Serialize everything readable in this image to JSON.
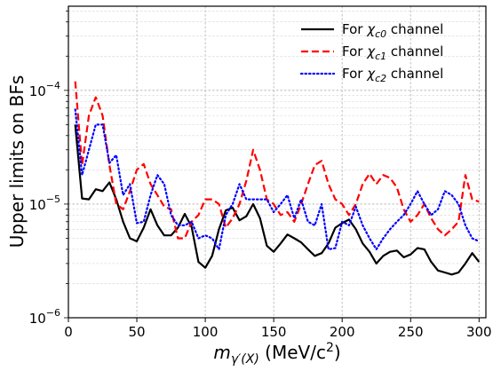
{
  "chart_data": {
    "type": "line",
    "title": "",
    "xlabel": "m_{γ'(X)} (MeV/c²)",
    "xlabel_parts": {
      "m": "m",
      "sub": "γ′(X)",
      "rest": " (MeV/c",
      "sup": "2",
      "close": ")"
    },
    "ylabel": "Upper limits on BFs",
    "xlim": [
      0,
      305
    ],
    "ylim": [
      1e-06,
      0.00055
    ],
    "yscale": "log",
    "xticks": [
      0,
      50,
      100,
      150,
      200,
      250,
      300
    ],
    "xtick_labels": [
      "0",
      "50",
      "100",
      "150",
      "200",
      "250",
      "300"
    ],
    "yticks": [
      1e-06,
      1e-05,
      0.0001
    ],
    "ytick_labels": [
      {
        "base": "10",
        "exp": "−6"
      },
      {
        "base": "10",
        "exp": "−5"
      },
      {
        "base": "10",
        "exp": "−4"
      }
    ],
    "grid": true,
    "legend_position": "top-right",
    "series": [
      {
        "name": "For χc0 channel",
        "legend": {
          "pre": "For ",
          "sym": "χ",
          "sub": "c0",
          "post": " channel"
        },
        "color": "#000000",
        "dash": "solid",
        "x": [
          5,
          10,
          15,
          20,
          25,
          30,
          35,
          40,
          45,
          50,
          55,
          60,
          65,
          70,
          75,
          80,
          85,
          90,
          95,
          100,
          105,
          110,
          115,
          120,
          125,
          130,
          135,
          140,
          145,
          150,
          155,
          160,
          165,
          170,
          175,
          180,
          185,
          190,
          195,
          200,
          205,
          210,
          215,
          220,
          225,
          230,
          235,
          240,
          245,
          250,
          255,
          260,
          265,
          270,
          275,
          280,
          285,
          290,
          295,
          300
        ],
        "y": [
          5e-05,
          1.12e-05,
          1.1e-05,
          1.35e-05,
          1.3e-05,
          1.55e-05,
          1.1e-05,
          7e-06,
          5e-06,
          4.7e-06,
          6.2e-06,
          9e-06,
          6.5e-06,
          5.3e-06,
          5.3e-06,
          6.2e-06,
          8.2e-06,
          6.3e-06,
          3.1e-06,
          2.75e-06,
          3.5e-06,
          6e-06,
          8.8e-06,
          9.3e-06,
          7.2e-06,
          7.8e-06,
          1e-05,
          7.5e-06,
          4.3e-06,
          3.8e-06,
          4.5e-06,
          5.4e-06,
          5e-06,
          4.6e-06,
          4e-06,
          3.5e-06,
          3.7e-06,
          4.5e-06,
          6.2e-06,
          6.8e-06,
          7.3e-06,
          6e-06,
          4.5e-06,
          3.8e-06,
          3e-06,
          3.5e-06,
          3.8e-06,
          3.9e-06,
          3.4e-06,
          3.6e-06,
          4.1e-06,
          4e-06,
          3.1e-06,
          2.6e-06,
          2.5e-06,
          2.4e-06,
          2.5e-06,
          3e-06,
          3.7e-06,
          3.1e-06
        ]
      },
      {
        "name": "For χc1 channel",
        "legend": {
          "pre": "For ",
          "sym": "χ",
          "sub": "c1",
          "post": " channel"
        },
        "color": "#ff0000",
        "dash": "dashed",
        "x": [
          5,
          10,
          15,
          20,
          25,
          30,
          35,
          40,
          45,
          50,
          55,
          60,
          65,
          70,
          75,
          80,
          85,
          90,
          95,
          100,
          105,
          110,
          115,
          120,
          125,
          130,
          135,
          140,
          145,
          150,
          155,
          160,
          165,
          170,
          175,
          180,
          185,
          190,
          195,
          200,
          205,
          210,
          215,
          220,
          225,
          230,
          235,
          240,
          245,
          250,
          255,
          260,
          265,
          270,
          275,
          280,
          285,
          290,
          295,
          300
        ],
        "y": [
          0.00012,
          2.2e-05,
          6e-05,
          8.7e-05,
          6e-05,
          2.2e-05,
          1e-05,
          9e-06,
          1.3e-05,
          2e-05,
          2.25e-05,
          1.5e-05,
          1.2e-05,
          9.5e-06,
          9e-06,
          5e-06,
          5e-06,
          7e-06,
          8e-06,
          1.1e-05,
          1.1e-05,
          1e-05,
          6.2e-06,
          7.5e-06,
          1e-05,
          1.6e-05,
          3e-05,
          2e-05,
          1.1e-05,
          1e-05,
          8e-06,
          8.5e-06,
          7e-06,
          1e-05,
          1.5e-05,
          2.2e-05,
          2.4e-05,
          1.5e-05,
          1.1e-05,
          1e-05,
          8e-06,
          1e-05,
          1.5e-05,
          1.85e-05,
          1.5e-05,
          1.8e-05,
          1.7e-05,
          1.4e-05,
          9e-06,
          7e-06,
          8e-06,
          1e-05,
          7.5e-06,
          6e-06,
          5.3e-06,
          6e-06,
          7e-06,
          1.8e-05,
          1.1e-05,
          1.05e-05
        ]
      },
      {
        "name": "For χc2 channel",
        "legend": {
          "pre": "For ",
          "sym": "χ",
          "sub": "c2",
          "post": " channel"
        },
        "color": "#0000ff",
        "dash": "dotted",
        "x": [
          5,
          10,
          15,
          20,
          25,
          30,
          35,
          40,
          45,
          50,
          55,
          60,
          65,
          70,
          75,
          80,
          85,
          90,
          95,
          100,
          105,
          110,
          115,
          120,
          125,
          130,
          135,
          140,
          145,
          150,
          155,
          160,
          165,
          170,
          175,
          180,
          185,
          190,
          195,
          200,
          205,
          210,
          215,
          220,
          225,
          230,
          235,
          240,
          245,
          250,
          255,
          260,
          265,
          270,
          275,
          280,
          285,
          290,
          295,
          300
        ],
        "y": [
          6.8e-05,
          1.8e-05,
          3e-05,
          5e-05,
          5e-05,
          2.3e-05,
          2.7e-05,
          1.2e-05,
          1.5e-05,
          6.8e-06,
          7e-06,
          1.2e-05,
          1.8e-05,
          1.5e-05,
          8e-06,
          6.5e-06,
          6.5e-06,
          7e-06,
          5e-06,
          5.3e-06,
          5e-06,
          4e-06,
          8e-06,
          1e-05,
          1.5e-05,
          1.1e-05,
          1.1e-05,
          1.1e-05,
          1.1e-05,
          8.5e-06,
          1e-05,
          1.2e-05,
          7.5e-06,
          1.1e-05,
          7e-06,
          6.5e-06,
          1e-05,
          4e-06,
          4.1e-06,
          7e-06,
          6.5e-06,
          9.5e-06,
          6.5e-06,
          5e-06,
          4e-06,
          5e-06,
          6e-06,
          7e-06,
          8e-06,
          1e-05,
          1.3e-05,
          1e-05,
          8e-06,
          9e-06,
          1.3e-05,
          1.2e-05,
          1e-05,
          6.5e-06,
          5e-06,
          4.7e-06
        ]
      }
    ]
  }
}
